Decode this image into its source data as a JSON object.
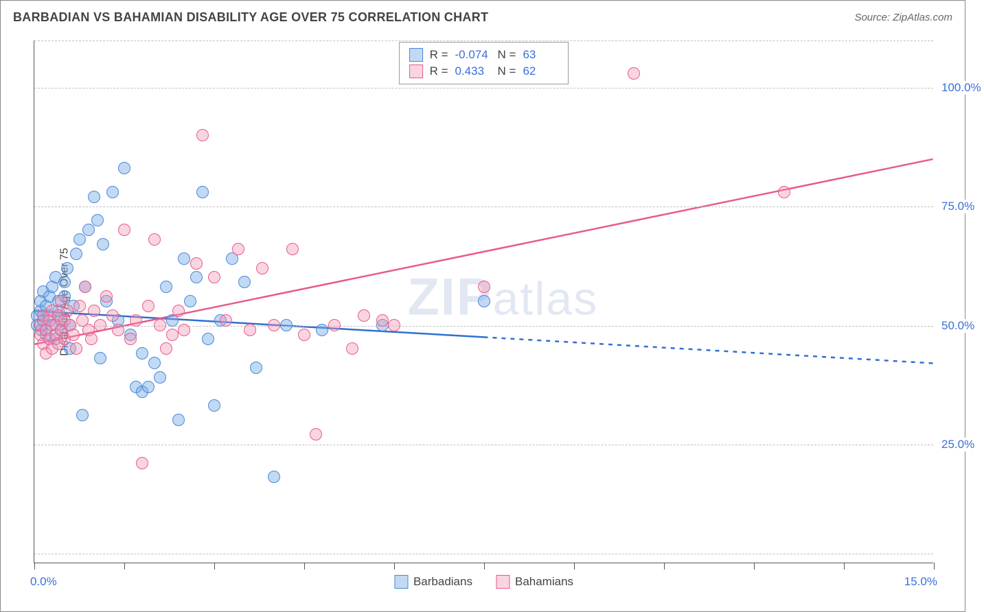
{
  "title": "BARBADIAN VS BAHAMIAN DISABILITY AGE OVER 75 CORRELATION CHART",
  "source": "Source: ZipAtlas.com",
  "watermark": {
    "bold": "ZIP",
    "rest": "atlas"
  },
  "yaxis_title": "Disability Age Over 75",
  "chart": {
    "type": "scatter",
    "background_color": "#ffffff",
    "border_color": "#888888",
    "axis_color": "#555555",
    "grid_color": "#bfbfbf",
    "xlim": [
      0,
      15
    ],
    "ylim": [
      0,
      110
    ],
    "xticks": [
      0,
      1.5,
      3,
      4.5,
      6,
      7.5,
      9,
      10.5,
      12,
      13.5,
      15
    ],
    "yticks": [
      {
        "v": 25,
        "label": "25.0%"
      },
      {
        "v": 50,
        "label": "50.0%"
      },
      {
        "v": 75,
        "label": "75.0%"
      },
      {
        "v": 100,
        "label": "100.0%"
      }
    ],
    "ytick_extra_grid": [
      2,
      110
    ],
    "xaxis_min_label": "0.0%",
    "xaxis_max_label": "15.0%",
    "label_color": "#3a6fd8",
    "label_fontsize": 17,
    "point_radius": 9,
    "point_stroke_width": 1.5,
    "series": [
      {
        "name": "Barbadians",
        "fill": "rgba(120,170,230,0.45)",
        "stroke": "#4a88d8",
        "trend": {
          "color": "#2f6fd0",
          "width": 2.5,
          "solid_until_x": 7.5,
          "y_at_x0": 53,
          "y_at_xmax": 42,
          "dash": "6,7"
        },
        "stats": {
          "R": "-0.074",
          "N": "63"
        },
        "points": [
          [
            0.05,
            52
          ],
          [
            0.05,
            50
          ],
          [
            0.1,
            53
          ],
          [
            0.1,
            55
          ],
          [
            0.12,
            49
          ],
          [
            0.15,
            51
          ],
          [
            0.15,
            57
          ],
          [
            0.2,
            54
          ],
          [
            0.2,
            48
          ],
          [
            0.25,
            56
          ],
          [
            0.25,
            52
          ],
          [
            0.3,
            50
          ],
          [
            0.3,
            58
          ],
          [
            0.35,
            60
          ],
          [
            0.35,
            47
          ],
          [
            0.4,
            55
          ],
          [
            0.4,
            53
          ],
          [
            0.45,
            51
          ],
          [
            0.45,
            49
          ],
          [
            0.5,
            56
          ],
          [
            0.5,
            59
          ],
          [
            0.55,
            62
          ],
          [
            0.6,
            45
          ],
          [
            0.6,
            50
          ],
          [
            0.65,
            54
          ],
          [
            0.7,
            65
          ],
          [
            0.75,
            68
          ],
          [
            0.8,
            31
          ],
          [
            0.85,
            58
          ],
          [
            0.9,
            70
          ],
          [
            1.0,
            77
          ],
          [
            1.05,
            72
          ],
          [
            1.1,
            43
          ],
          [
            1.15,
            67
          ],
          [
            1.2,
            55
          ],
          [
            1.3,
            78
          ],
          [
            1.4,
            51
          ],
          [
            1.5,
            83
          ],
          [
            1.6,
            48
          ],
          [
            1.7,
            37
          ],
          [
            1.8,
            44
          ],
          [
            1.8,
            36
          ],
          [
            1.9,
            37
          ],
          [
            2.0,
            42
          ],
          [
            2.1,
            39
          ],
          [
            2.2,
            58
          ],
          [
            2.3,
            51
          ],
          [
            2.4,
            30
          ],
          [
            2.5,
            64
          ],
          [
            2.6,
            55
          ],
          [
            2.7,
            60
          ],
          [
            2.8,
            78
          ],
          [
            2.9,
            47
          ],
          [
            3.0,
            33
          ],
          [
            3.1,
            51
          ],
          [
            3.3,
            64
          ],
          [
            3.5,
            59
          ],
          [
            3.7,
            41
          ],
          [
            4.0,
            18
          ],
          [
            4.2,
            50
          ],
          [
            4.8,
            49
          ],
          [
            5.8,
            50
          ],
          [
            7.5,
            55
          ]
        ]
      },
      {
        "name": "Bahamians",
        "fill": "rgba(240,150,180,0.40)",
        "stroke": "#e85a8a",
        "trend": {
          "color": "#e85a8a",
          "width": 2.5,
          "solid_until_x": 15,
          "y_at_x0": 46,
          "y_at_xmax": 85,
          "dash": null
        },
        "stats": {
          "R": "0.433",
          "N": "62"
        },
        "points": [
          [
            0.1,
            48
          ],
          [
            0.1,
            50
          ],
          [
            0.15,
            46
          ],
          [
            0.15,
            52
          ],
          [
            0.2,
            49
          ],
          [
            0.2,
            44
          ],
          [
            0.25,
            51
          ],
          [
            0.25,
            47
          ],
          [
            0.3,
            53
          ],
          [
            0.3,
            45
          ],
          [
            0.35,
            50
          ],
          [
            0.35,
            48
          ],
          [
            0.4,
            52
          ],
          [
            0.4,
            46
          ],
          [
            0.45,
            49
          ],
          [
            0.45,
            55
          ],
          [
            0.5,
            51
          ],
          [
            0.5,
            47
          ],
          [
            0.55,
            53
          ],
          [
            0.6,
            50
          ],
          [
            0.65,
            48
          ],
          [
            0.7,
            45
          ],
          [
            0.75,
            54
          ],
          [
            0.8,
            51
          ],
          [
            0.85,
            58
          ],
          [
            0.9,
            49
          ],
          [
            0.95,
            47
          ],
          [
            1.0,
            53
          ],
          [
            1.1,
            50
          ],
          [
            1.2,
            56
          ],
          [
            1.3,
            52
          ],
          [
            1.4,
            49
          ],
          [
            1.5,
            70
          ],
          [
            1.6,
            47
          ],
          [
            1.7,
            51
          ],
          [
            1.8,
            21
          ],
          [
            1.9,
            54
          ],
          [
            2.0,
            68
          ],
          [
            2.1,
            50
          ],
          [
            2.2,
            45
          ],
          [
            2.3,
            48
          ],
          [
            2.4,
            53
          ],
          [
            2.5,
            49
          ],
          [
            2.7,
            63
          ],
          [
            2.8,
            90
          ],
          [
            3.0,
            60
          ],
          [
            3.2,
            51
          ],
          [
            3.4,
            66
          ],
          [
            3.6,
            49
          ],
          [
            3.8,
            62
          ],
          [
            4.0,
            50
          ],
          [
            4.3,
            66
          ],
          [
            4.5,
            48
          ],
          [
            4.7,
            27
          ],
          [
            5.0,
            50
          ],
          [
            5.3,
            45
          ],
          [
            5.5,
            52
          ],
          [
            5.8,
            51
          ],
          [
            6.0,
            50
          ],
          [
            7.5,
            58
          ],
          [
            10.0,
            103
          ],
          [
            12.5,
            78
          ]
        ]
      }
    ]
  },
  "bottom_legend": [
    {
      "label": "Barbadians",
      "fill": "rgba(120,170,230,0.45)",
      "stroke": "#4a88d8"
    },
    {
      "label": "Bahamians",
      "fill": "rgba(240,150,180,0.40)",
      "stroke": "#e85a8a"
    }
  ]
}
